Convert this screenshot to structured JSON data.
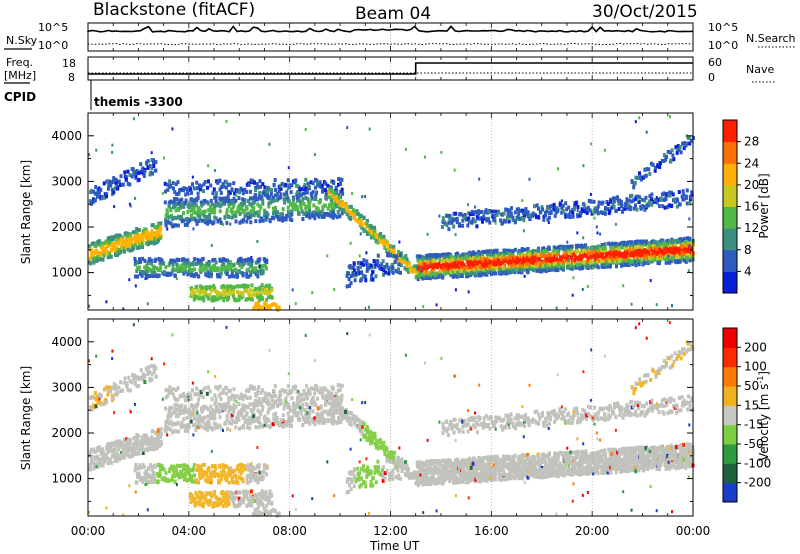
{
  "header": {
    "station": "Blackstone (fitACF)",
    "beam": "Beam 04",
    "date": "30/Oct/2015"
  },
  "noise_panel": {
    "left_label": "N.Sky",
    "right_label": "N.Search",
    "left_ticks": [
      "10^5",
      "10^0"
    ],
    "right_ticks": [
      "10^5",
      "10^0"
    ]
  },
  "freq_panel": {
    "left_label_top": "Freq.",
    "left_label_bottom": "[MHz]",
    "right_label": "Nave",
    "left_ticks": [
      "18",
      "8"
    ],
    "right_ticks": [
      "60",
      "0"
    ]
  },
  "cpid": {
    "label": "CPID",
    "value": "themis -3300"
  },
  "chart_data": [
    {
      "type": "heatmap",
      "name": "power",
      "ylabel": "Slant Range [km]",
      "xlabel": "Time UT",
      "x_ticks": [
        "00:00",
        "04:00",
        "08:00",
        "12:00",
        "16:00",
        "20:00",
        "00:00"
      ],
      "y_ticks": [
        "1000",
        "2000",
        "3000",
        "4000"
      ],
      "ylim": [
        180,
        4500
      ],
      "colorbar": {
        "label": "Power [dB]",
        "ticks": [
          "4",
          "8",
          "12",
          "16",
          "20",
          "24",
          "28"
        ],
        "colors": [
          "#0a1ed8",
          "#2f5bc0",
          "#3e8f80",
          "#52b848",
          "#c8c820",
          "#ffb000",
          "#ff7000",
          "#ff2000"
        ]
      },
      "features": [
        {
          "x": [
            0.0,
            2.8
          ],
          "center": [
            1450,
            1950
          ],
          "type": "strong band"
        },
        {
          "x": [
            0.0,
            2.6
          ],
          "center": [
            2600,
            3400
          ],
          "type": "weak band"
        },
        {
          "x": [
            3.0,
            9.5
          ],
          "center": [
            2300,
            2600
          ],
          "type": "weak band"
        },
        {
          "x": [
            1.8,
            7.0
          ],
          "center": [
            1000,
            1300
          ],
          "type": "patch"
        },
        {
          "x": [
            4.0,
            7.0
          ],
          "center": [
            400,
            800
          ],
          "type": "patch"
        },
        {
          "x": [
            9.5,
            13.0
          ],
          "center": [
            2800,
            1000
          ],
          "type": "descending band"
        },
        {
          "x": [
            13.0,
            24.0
          ],
          "center": [
            1000,
            1400
          ],
          "type": "strong band"
        },
        {
          "x": [
            14.0,
            24.0
          ],
          "center": [
            2200,
            2800
          ],
          "type": "weak band"
        }
      ]
    },
    {
      "type": "heatmap",
      "name": "velocity",
      "ylabel": "Slant Range [km]",
      "xlabel": "Time UT",
      "x_ticks": [
        "00:00",
        "04:00",
        "08:00",
        "12:00",
        "16:00",
        "20:00",
        "00:00"
      ],
      "y_ticks": [
        "1000",
        "2000",
        "3000",
        "4000"
      ],
      "ylim": [
        180,
        4500
      ],
      "colorbar": {
        "label": "Velocity [m s",
        "label_sup": "-1",
        "label_close": "]",
        "ticks": [
          "200",
          "100",
          "50",
          "15",
          "-15",
          "-50",
          "-100",
          "-200"
        ],
        "colors": [
          "#1a3ec8",
          "#206040",
          "#2f9a40",
          "#7ad040",
          "#c8c8c0",
          "#f0b020",
          "#ff7a00",
          "#ff2a00",
          "#ee0000"
        ]
      }
    }
  ],
  "colors": {
    "grey_scatter": "#c2c2bc",
    "green_velocity": "#86d048",
    "orange_velocity": "#f2b62a"
  }
}
